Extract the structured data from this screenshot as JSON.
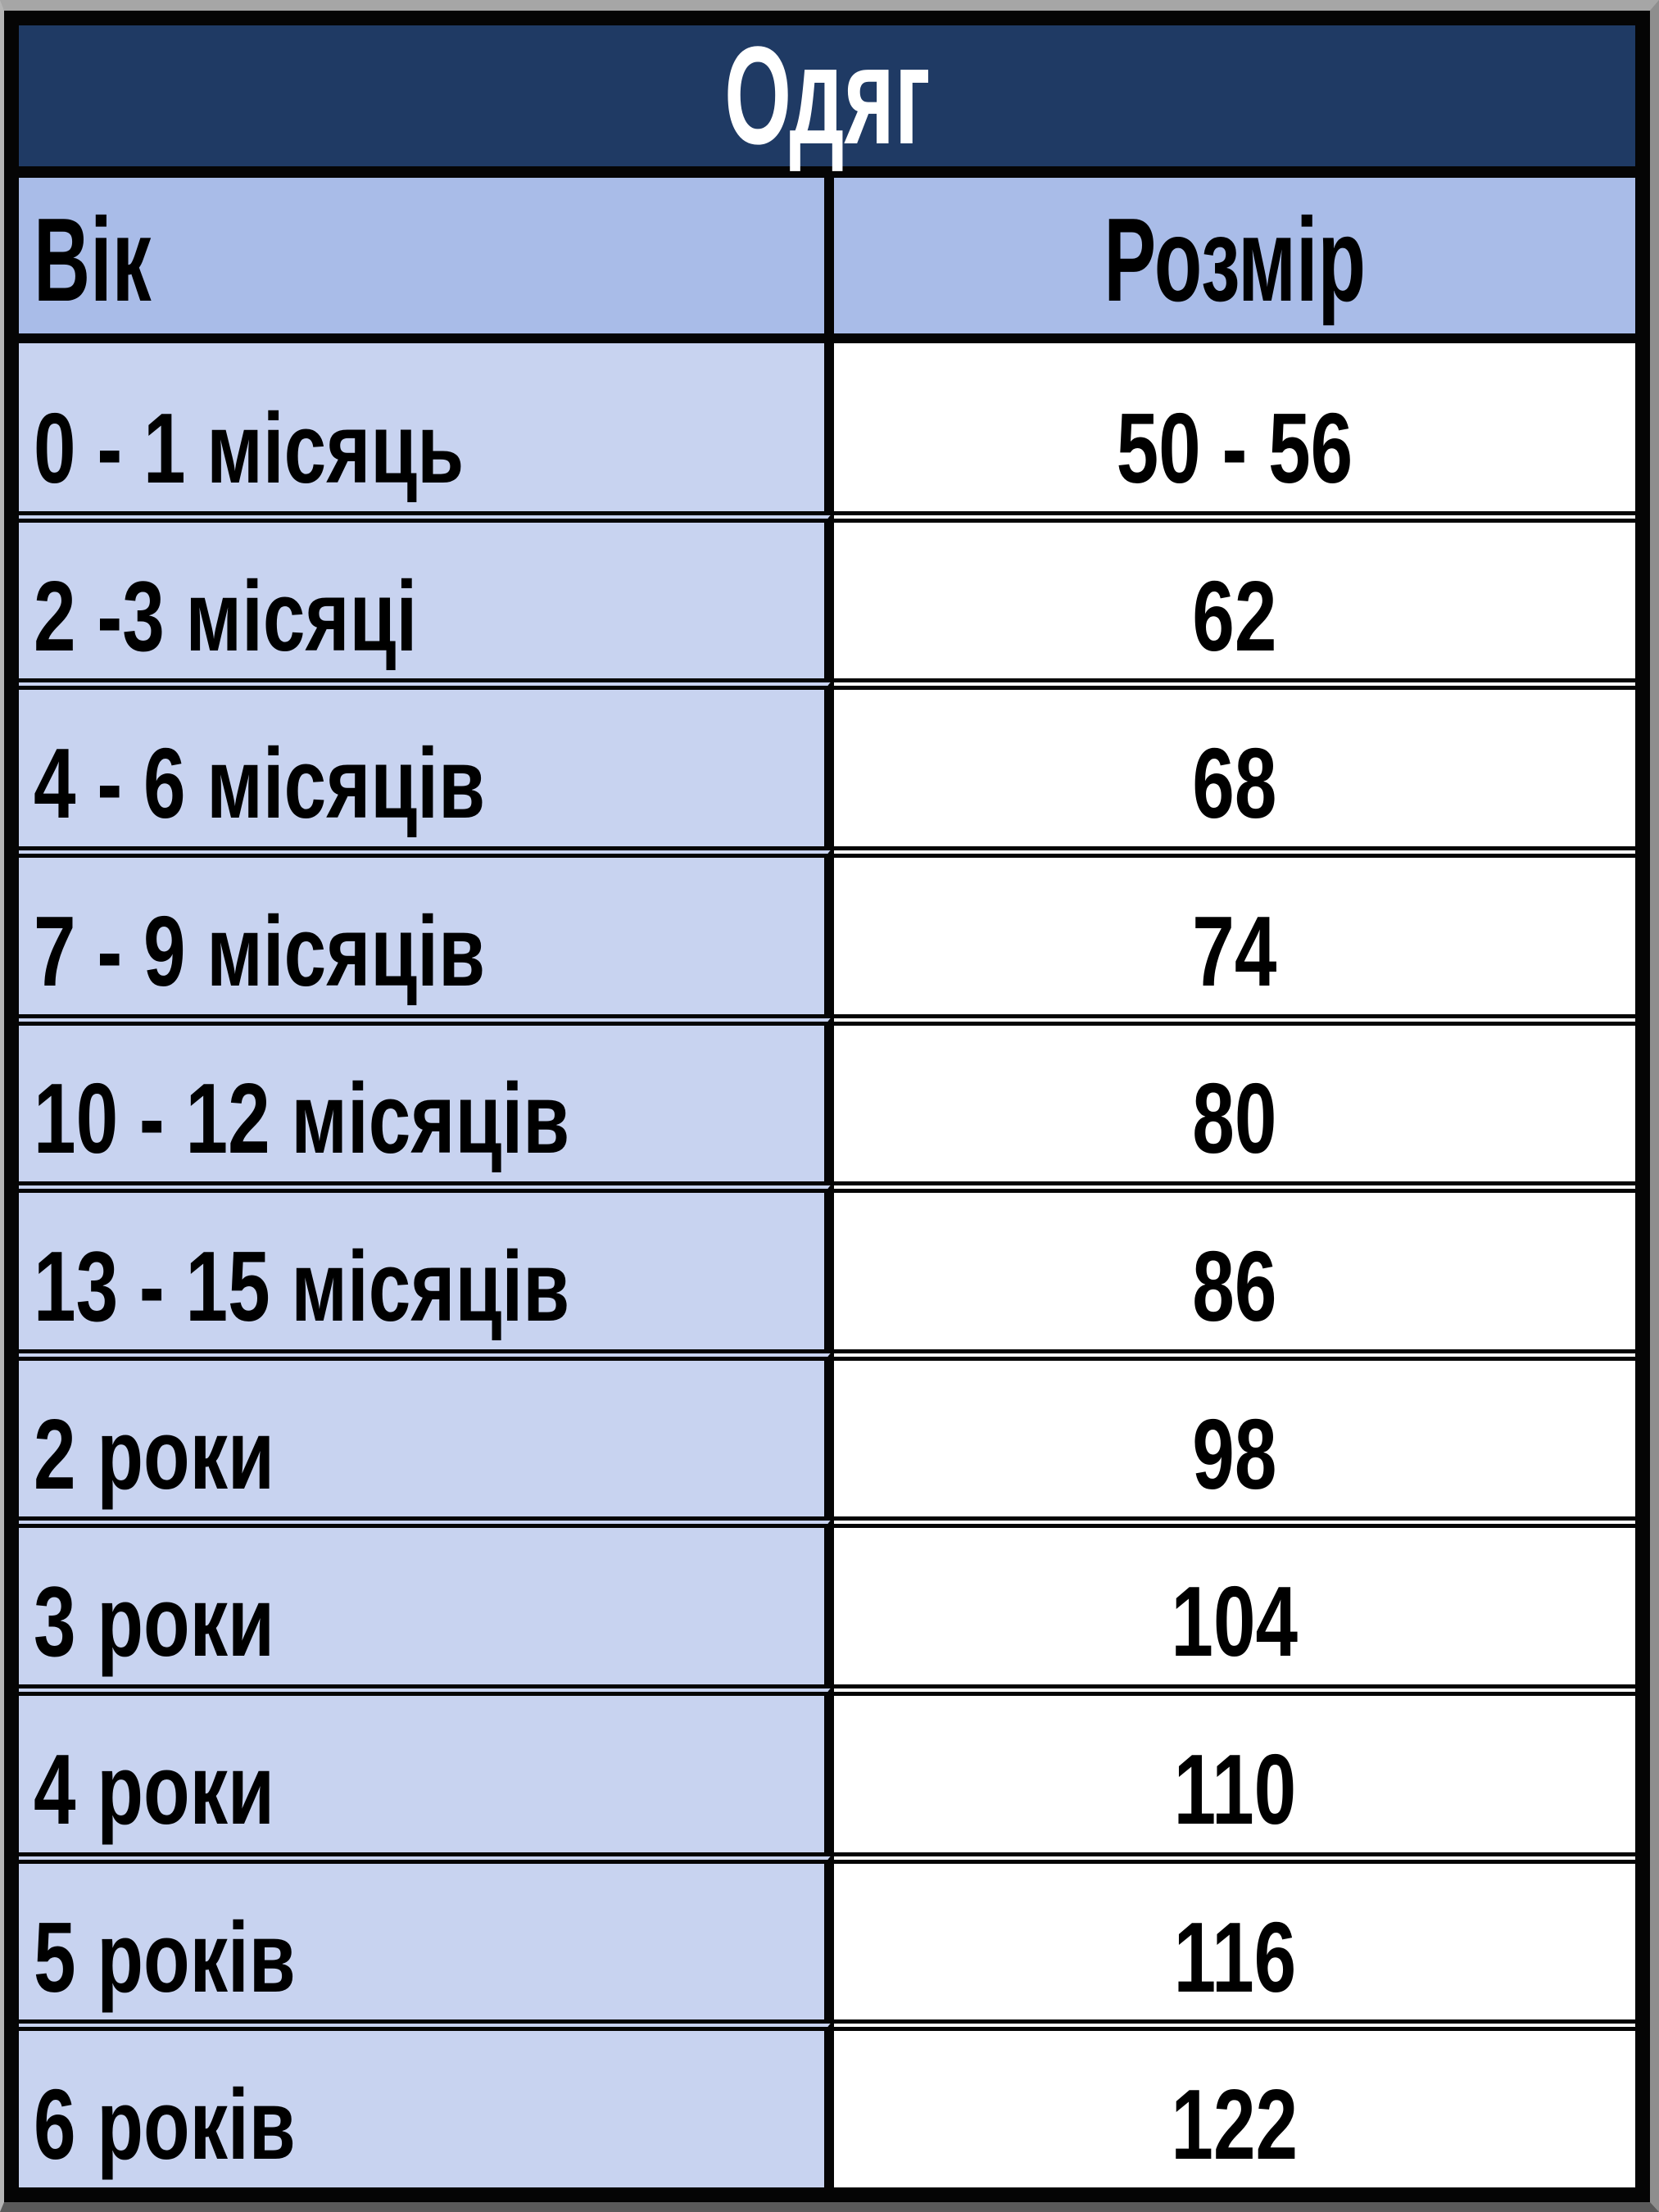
{
  "title": "Одяг",
  "header": {
    "age": "Вік",
    "size": "Розмір"
  },
  "rows": [
    {
      "age": "0 - 1 місяць",
      "size": "50 - 56"
    },
    {
      "age": "2 -3 місяці",
      "size": "62"
    },
    {
      "age": "4 - 6 місяців",
      "size": "68"
    },
    {
      "age": "7 - 9 місяців",
      "size": "74"
    },
    {
      "age": "10 - 12 місяців",
      "size": "80"
    },
    {
      "age": "13 - 15 місяців",
      "size": "86"
    },
    {
      "age": "2 роки",
      "size": "98"
    },
    {
      "age": "3 роки",
      "size": "104"
    },
    {
      "age": "4 роки",
      "size": "110"
    },
    {
      "age": "5 років",
      "size": "116"
    },
    {
      "age": "6 років",
      "size": "122"
    }
  ],
  "colors": {
    "title_bg": "#1F3A64",
    "title_text": "#FFFFFF",
    "header_bg": "#A9BCE8",
    "row_age_bg": "#C8D3F0",
    "row_size_bg": "#FFFFFF",
    "border": "#050505",
    "text": "#000000"
  }
}
